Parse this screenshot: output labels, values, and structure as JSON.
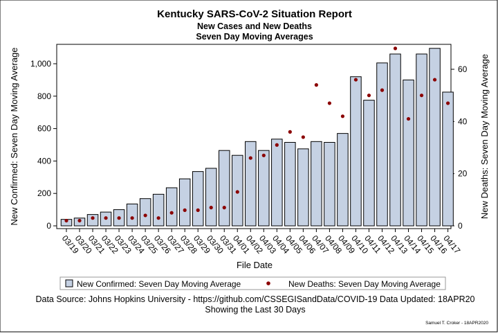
{
  "titles": {
    "line1": "Kentucky SARS-CoV-2 Situation Report",
    "line2": "New Cases and New Deaths",
    "line3": "Seven Day Moving Averages"
  },
  "colors": {
    "bar_fill": "#c5d1e3",
    "bar_stroke": "#000000",
    "point": "#8b0000"
  },
  "chart_data": {
    "type": "bar",
    "xlabel": "File Date",
    "ylabel_left": "New Confirmed: Seven Day Moving Average",
    "ylabel_right": "New Deaths: Seven Day Moving Average",
    "ylim_left": [
      0,
      1150
    ],
    "ylim_right": [
      0,
      69
    ],
    "yticks_left": [
      0,
      200,
      400,
      600,
      800,
      1000
    ],
    "yticks_left_labels": [
      "0",
      "200",
      "400",
      "600",
      "800",
      "1,000"
    ],
    "yticks_right": [
      0,
      20,
      40,
      60
    ],
    "yticks_right_labels": [
      "0",
      "20",
      "40",
      "60"
    ],
    "categories": [
      "03/19",
      "03/20",
      "03/21",
      "03/22",
      "03/23",
      "03/24",
      "03/25",
      "03/26",
      "03/27",
      "03/28",
      "03/29",
      "03/30",
      "03/31",
      "04/01",
      "04/02",
      "04/03",
      "04/04",
      "04/05",
      "04/06",
      "04/07",
      "04/08",
      "04/09",
      "04/10",
      "04/11",
      "04/12",
      "04/13",
      "04/14",
      "04/15",
      "04/16",
      "04/17"
    ],
    "series": [
      {
        "name": "New Confirmed: Seven Day Moving Average",
        "kind": "bar",
        "axis": "left",
        "values": [
          40,
          48,
          70,
          85,
          100,
          135,
          168,
          195,
          235,
          290,
          335,
          355,
          465,
          435,
          520,
          465,
          535,
          515,
          475,
          520,
          515,
          570,
          920,
          775,
          1005,
          1060,
          900,
          1060,
          1095,
          825
        ]
      },
      {
        "name": "New Deaths: Seven Day Moving Average",
        "kind": "scatter",
        "axis": "right",
        "values": [
          2,
          2,
          3,
          3,
          3,
          3,
          4,
          3,
          5,
          6,
          6,
          7,
          7,
          13,
          26,
          27,
          31,
          36,
          34,
          54,
          47,
          42,
          56,
          50,
          52,
          68,
          41,
          50,
          56,
          47
        ]
      }
    ],
    "legend": {
      "position": "bottom",
      "items": [
        {
          "label": "New Confirmed: Seven Day Moving Average",
          "marker": "square"
        },
        {
          "label": "New Deaths: Seven Day Moving Average",
          "marker": "dot"
        }
      ]
    }
  },
  "footer": {
    "source": "Data Source: Johns Hopkins University - https://github.com/CSSEGISandData/COVID-19 Data Updated: 18APR20",
    "showing": "Showing the Last 30 Days",
    "credit": "Samuel T. Croker - 18APR2020"
  }
}
